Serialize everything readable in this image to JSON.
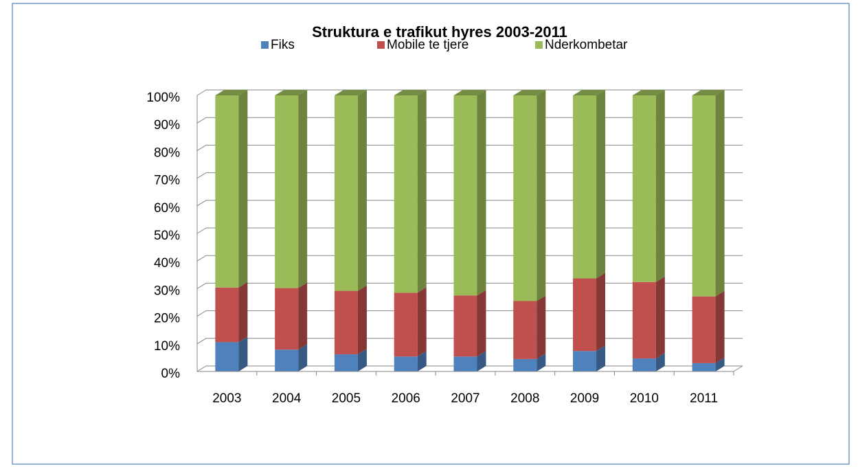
{
  "chart_data": {
    "type": "bar3d_stacked",
    "title": "Struktura e trafikut hyres 2003-2011",
    "categories": [
      "2003",
      "2004",
      "2005",
      "2006",
      "2007",
      "2008",
      "2009",
      "2010",
      "2011"
    ],
    "series": [
      {
        "name": "Fiks",
        "color": "#4f81bd",
        "values": [
          10.6,
          7.9,
          6.2,
          5.4,
          5.4,
          4.5,
          7.4,
          4.7,
          3.0
        ]
      },
      {
        "name": "Mobile te tjere",
        "color": "#c0504d",
        "values": [
          19.8,
          22.3,
          23.0,
          23.1,
          22.1,
          21.0,
          26.3,
          27.7,
          24.2
        ]
      },
      {
        "name": "Nderkombetar",
        "color": "#9bbb59",
        "values": [
          69.6,
          69.8,
          70.8,
          71.5,
          72.5,
          74.5,
          66.3,
          67.6,
          72.8
        ]
      }
    ],
    "ylim": [
      0,
      100
    ],
    "yticks": [
      {
        "value": 0,
        "label": "0%"
      },
      {
        "value": 10,
        "label": "10%"
      },
      {
        "value": 20,
        "label": "20%"
      },
      {
        "value": 30,
        "label": "30%"
      },
      {
        "value": 40,
        "label": "40%"
      },
      {
        "value": 50,
        "label": "50%"
      },
      {
        "value": 60,
        "label": "60%"
      },
      {
        "value": 70,
        "label": "70%"
      },
      {
        "value": 80,
        "label": "80%"
      },
      {
        "value": 90,
        "label": "90%"
      },
      {
        "value": 100,
        "label": "100%"
      }
    ],
    "grid": true,
    "legend": "top"
  }
}
